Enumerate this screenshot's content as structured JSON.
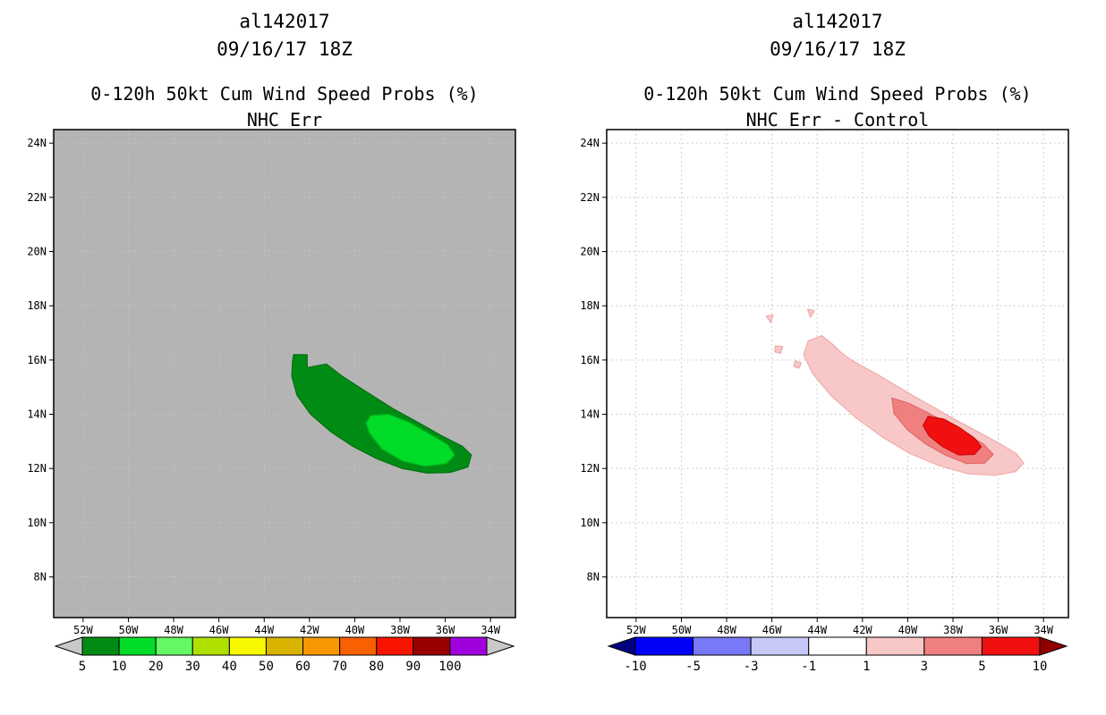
{
  "page": {
    "background": "#ffffff"
  },
  "chart_data": [
    {
      "type": "filled-contour-map",
      "title_lines": [
        "al142017",
        "09/16/17 18Z"
      ],
      "heading": "0-120h 50kt Cum Wind Speed Probs (%)",
      "subheading": "NHC Err",
      "plot_bg": "#b4b4b4",
      "grid_color": "#c6c6c6",
      "grid": true,
      "lon_range": [
        -53.3,
        -32.9
      ],
      "lat_range": [
        6.5,
        24.5
      ],
      "x_ticks": [
        {
          "v": -52,
          "label": "52W"
        },
        {
          "v": -50,
          "label": "50W"
        },
        {
          "v": -48,
          "label": "48W"
        },
        {
          "v": -46,
          "label": "46W"
        },
        {
          "v": -44,
          "label": "44W"
        },
        {
          "v": -42,
          "label": "42W"
        },
        {
          "v": -40,
          "label": "40W"
        },
        {
          "v": -38,
          "label": "38W"
        },
        {
          "v": -36,
          "label": "36W"
        },
        {
          "v": -34,
          "label": "34W"
        }
      ],
      "y_ticks": [
        {
          "v": 8,
          "label": "8N"
        },
        {
          "v": 10,
          "label": "10N"
        },
        {
          "v": 12,
          "label": "12N"
        },
        {
          "v": 14,
          "label": "14N"
        },
        {
          "v": 16,
          "label": "16N"
        },
        {
          "v": 18,
          "label": "18N"
        },
        {
          "v": 20,
          "label": "20N"
        },
        {
          "v": 22,
          "label": "22N"
        },
        {
          "v": 24,
          "label": "24N"
        }
      ],
      "contours": [
        {
          "level": "5",
          "color": "#008c14",
          "stroke": "#006e0e",
          "points": [
            [
              -42.7,
              16.2
            ],
            [
              -42.1,
              16.2
            ],
            [
              -42.1,
              15.72
            ],
            [
              -41.25,
              15.85
            ],
            [
              -40.55,
              15.4
            ],
            [
              -39.9,
              15.05
            ],
            [
              -39.15,
              14.65
            ],
            [
              -38.3,
              14.2
            ],
            [
              -37.2,
              13.7
            ],
            [
              -36.15,
              13.2
            ],
            [
              -35.25,
              12.82
            ],
            [
              -34.85,
              12.5
            ],
            [
              -35.0,
              12.05
            ],
            [
              -35.8,
              11.85
            ],
            [
              -36.8,
              11.83
            ],
            [
              -37.9,
              12.0
            ],
            [
              -39.0,
              12.35
            ],
            [
              -40.05,
              12.8
            ],
            [
              -41.05,
              13.35
            ],
            [
              -41.95,
              14.0
            ],
            [
              -42.55,
              14.7
            ],
            [
              -42.78,
              15.4
            ],
            [
              -42.75,
              15.95
            ]
          ]
        },
        {
          "level": "10",
          "color": "#00dc28",
          "stroke": "#00b41e",
          "points": [
            [
              -39.3,
              13.95
            ],
            [
              -38.5,
              14.0
            ],
            [
              -37.6,
              13.7
            ],
            [
              -36.7,
              13.28
            ],
            [
              -35.9,
              12.88
            ],
            [
              -35.58,
              12.5
            ],
            [
              -35.95,
              12.18
            ],
            [
              -36.9,
              12.08
            ],
            [
              -37.9,
              12.28
            ],
            [
              -38.8,
              12.72
            ],
            [
              -39.35,
              13.3
            ],
            [
              -39.5,
              13.68
            ]
          ]
        }
      ],
      "colorbar": {
        "segments": [
          {
            "color": "#c8c8c8",
            "shape": "arrow-left"
          },
          {
            "color": "#008c14"
          },
          {
            "color": "#00dc28"
          },
          {
            "color": "#64f864"
          },
          {
            "color": "#b0e000"
          },
          {
            "color": "#f8f800"
          },
          {
            "color": "#d8b400"
          },
          {
            "color": "#f89800"
          },
          {
            "color": "#f86000"
          },
          {
            "color": "#f81400"
          },
          {
            "color": "#980000"
          },
          {
            "color": "#a000dc"
          },
          {
            "color": "#c8c8c8",
            "shape": "arrow-right"
          }
        ],
        "labels": [
          "5",
          "10",
          "20",
          "30",
          "40",
          "50",
          "60",
          "70",
          "80",
          "90",
          "100"
        ]
      }
    },
    {
      "type": "filled-contour-map",
      "title_lines": [
        "al142017",
        "09/16/17 18Z"
      ],
      "heading": "0-120h 50kt Cum Wind Speed Probs (%)",
      "subheading": "NHC Err - Control",
      "plot_bg": "#ffffff",
      "grid_color": "#c0c0c0",
      "grid": true,
      "lon_range": [
        -53.3,
        -32.9
      ],
      "lat_range": [
        6.5,
        24.5
      ],
      "x_ticks": [
        {
          "v": -52,
          "label": "52W"
        },
        {
          "v": -50,
          "label": "50W"
        },
        {
          "v": -48,
          "label": "48W"
        },
        {
          "v": -46,
          "label": "46W"
        },
        {
          "v": -44,
          "label": "44W"
        },
        {
          "v": -42,
          "label": "42W"
        },
        {
          "v": -40,
          "label": "40W"
        },
        {
          "v": -38,
          "label": "38W"
        },
        {
          "v": -36,
          "label": "36W"
        },
        {
          "v": -34,
          "label": "34W"
        }
      ],
      "y_ticks": [
        {
          "v": 8,
          "label": "8N"
        },
        {
          "v": 10,
          "label": "10N"
        },
        {
          "v": 12,
          "label": "12N"
        },
        {
          "v": 14,
          "label": "14N"
        },
        {
          "v": 16,
          "label": "16N"
        },
        {
          "v": 18,
          "label": "18N"
        },
        {
          "v": 20,
          "label": "20N"
        },
        {
          "v": 22,
          "label": "22N"
        },
        {
          "v": 24,
          "label": "24N"
        }
      ],
      "contours": [
        {
          "level": "1",
          "color": "#f8c8c8",
          "stroke": "#f0aaaa",
          "points": [
            [
              -44.4,
              16.7
            ],
            [
              -43.8,
              16.9
            ],
            [
              -43.35,
              16.6
            ],
            [
              -42.95,
              16.28
            ],
            [
              -42.5,
              16.0
            ],
            [
              -41.9,
              15.72
            ],
            [
              -41.3,
              15.45
            ],
            [
              -40.6,
              15.1
            ],
            [
              -39.8,
              14.7
            ],
            [
              -38.9,
              14.28
            ],
            [
              -38.0,
              13.85
            ],
            [
              -37.0,
              13.4
            ],
            [
              -36.0,
              12.95
            ],
            [
              -35.2,
              12.55
            ],
            [
              -34.88,
              12.2
            ],
            [
              -35.25,
              11.88
            ],
            [
              -36.15,
              11.75
            ],
            [
              -37.3,
              11.8
            ],
            [
              -38.6,
              12.1
            ],
            [
              -39.9,
              12.55
            ],
            [
              -41.1,
              13.15
            ],
            [
              -42.3,
              13.88
            ],
            [
              -43.4,
              14.7
            ],
            [
              -44.2,
              15.5
            ],
            [
              -44.6,
              16.2
            ]
          ]
        },
        {
          "level": "1",
          "color": "#f8c8c8",
          "stroke": "#f0aaaa",
          "points": [
            [
              -46.25,
              17.62
            ],
            [
              -45.95,
              17.66
            ],
            [
              -46.05,
              17.38
            ]
          ]
        },
        {
          "level": "1",
          "color": "#f8c8c8",
          "stroke": "#f0aaaa",
          "points": [
            [
              -44.42,
              17.88
            ],
            [
              -44.12,
              17.82
            ],
            [
              -44.3,
              17.58
            ]
          ]
        },
        {
          "level": "1",
          "color": "#f8c8c8",
          "stroke": "#f0aaaa",
          "points": [
            [
              -45.85,
              16.52
            ],
            [
              -45.52,
              16.5
            ],
            [
              -45.62,
              16.25
            ],
            [
              -45.88,
              16.3
            ]
          ]
        },
        {
          "level": "1",
          "color": "#f8c8c8",
          "stroke": "#f0aaaa",
          "points": [
            [
              -44.98,
              15.97
            ],
            [
              -44.7,
              15.9
            ],
            [
              -44.8,
              15.7
            ],
            [
              -45.02,
              15.76
            ]
          ]
        },
        {
          "level": "3",
          "color": "#f08080",
          "stroke": "#e06a6a",
          "points": [
            [
              -40.7,
              14.6
            ],
            [
              -40.0,
              14.42
            ],
            [
              -39.2,
              14.1
            ],
            [
              -38.35,
              13.72
            ],
            [
              -37.45,
              13.3
            ],
            [
              -36.65,
              12.9
            ],
            [
              -36.22,
              12.52
            ],
            [
              -36.6,
              12.2
            ],
            [
              -37.4,
              12.18
            ],
            [
              -38.3,
              12.48
            ],
            [
              -39.2,
              12.9
            ],
            [
              -40.0,
              13.42
            ],
            [
              -40.6,
              14.02
            ]
          ]
        },
        {
          "level": "5",
          "color": "#f01010",
          "stroke": "#cc0a0a",
          "points": [
            [
              -39.1,
              13.92
            ],
            [
              -38.4,
              13.82
            ],
            [
              -37.7,
              13.5
            ],
            [
              -37.05,
              13.12
            ],
            [
              -36.75,
              12.8
            ],
            [
              -37.05,
              12.52
            ],
            [
              -37.75,
              12.5
            ],
            [
              -38.45,
              12.8
            ],
            [
              -39.05,
              13.2
            ],
            [
              -39.32,
              13.58
            ]
          ]
        }
      ],
      "colorbar": {
        "segments": [
          {
            "color": "#000080",
            "shape": "arrow-left"
          },
          {
            "color": "#0000f8"
          },
          {
            "color": "#7878f8"
          },
          {
            "color": "#c8c8f8"
          },
          {
            "color": "#ffffff"
          },
          {
            "color": "#f8c8c8"
          },
          {
            "color": "#f08080"
          },
          {
            "color": "#f01010"
          },
          {
            "color": "#900000",
            "shape": "arrow-right"
          }
        ],
        "labels": [
          "-10",
          "-5",
          "-3",
          "-1",
          "1",
          "3",
          "5",
          "10"
        ]
      }
    }
  ]
}
